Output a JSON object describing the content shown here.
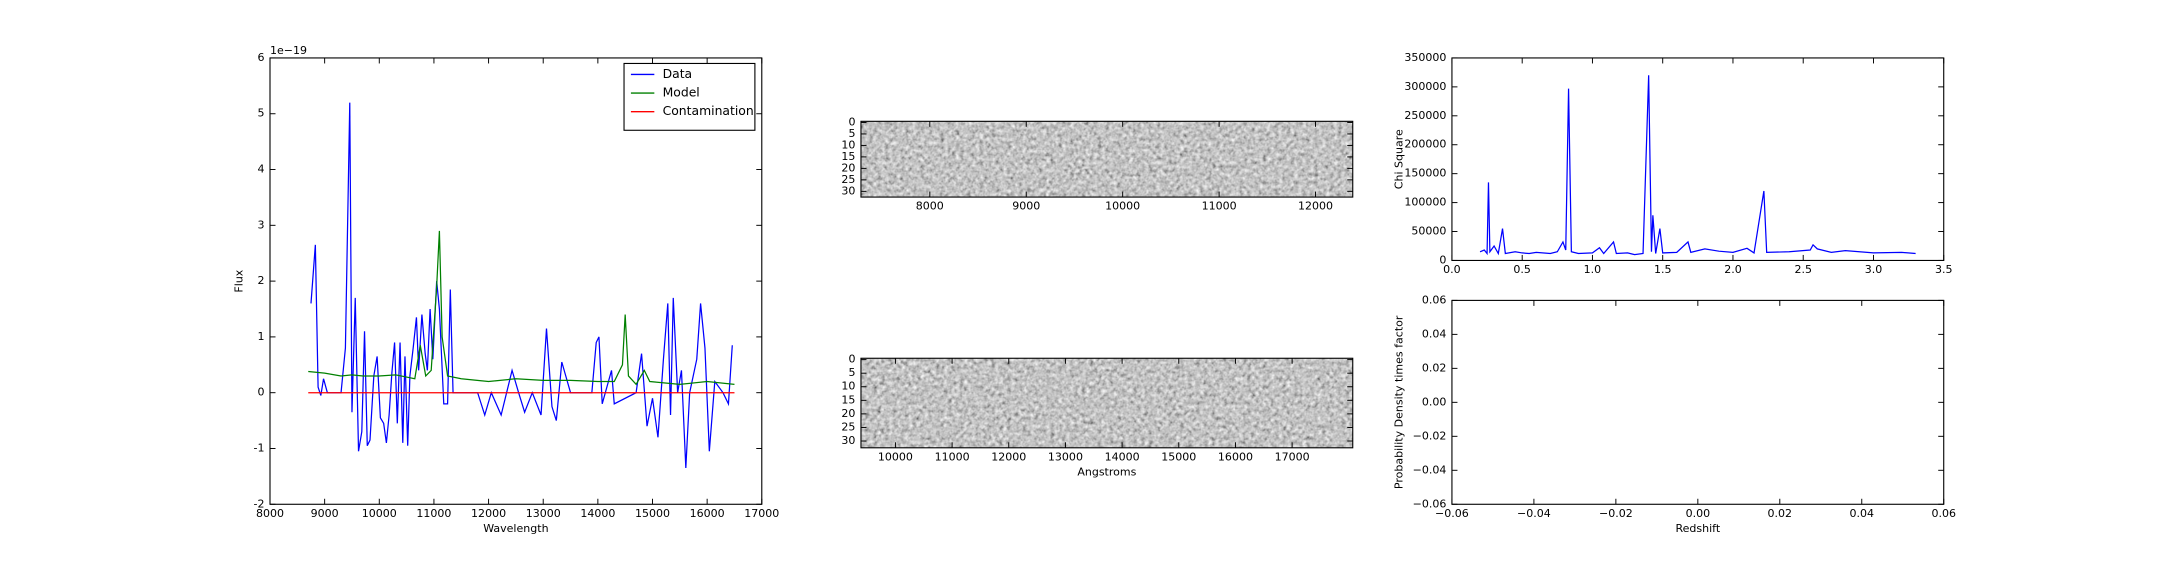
{
  "chart_data": [
    {
      "type": "line",
      "xlabel": "Wavelength",
      "ylabel": "Flux",
      "y_offset_label": "1e−19",
      "xlim": [
        8000,
        17000
      ],
      "ylim": [
        -2,
        6
      ],
      "xticks": [
        8000,
        9000,
        10000,
        11000,
        12000,
        13000,
        14000,
        15000,
        16000,
        17000
      ],
      "yticks": [
        -2,
        -1,
        0,
        1,
        2,
        3,
        4,
        5,
        6
      ],
      "legend": "upper right",
      "series": [
        {
          "name": "Data",
          "color": "#0000ff",
          "x": [
            8750,
            8830,
            8880,
            8930,
            8980,
            9050,
            9300,
            9380,
            9460,
            9500,
            9560,
            9620,
            9680,
            9730,
            9780,
            9830,
            9900,
            9960,
            10020,
            10080,
            10130,
            10180,
            10230,
            10280,
            10330,
            10380,
            10430,
            10470,
            10520,
            10560,
            10620,
            10680,
            10720,
            10780,
            10840,
            10880,
            10930,
            10980,
            11050,
            11100,
            11180,
            11250,
            11300,
            11350,
            11400,
            11800,
            11930,
            12050,
            12230,
            12330,
            12430,
            12550,
            12660,
            12800,
            12960,
            13060,
            13160,
            13240,
            13340,
            13500,
            13890,
            13970,
            14020,
            14080,
            14250,
            14300,
            14700,
            14800,
            14900,
            15000,
            15100,
            15200,
            15280,
            15330,
            15380,
            15460,
            15530,
            15610,
            15680,
            15810,
            15880,
            15960,
            16040,
            16140,
            16290,
            16390,
            16460
          ],
          "values": [
            1.6,
            2.65,
            0.1,
            -0.05,
            0.25,
            0.0,
            0.0,
            0.8,
            5.2,
            -0.35,
            1.7,
            -1.05,
            -0.7,
            1.1,
            -0.95,
            -0.85,
            0.3,
            0.65,
            -0.45,
            -0.55,
            -0.9,
            -0.4,
            0.35,
            0.9,
            -0.55,
            0.9,
            -0.9,
            0.65,
            -0.95,
            0.3,
            0.8,
            1.35,
            0.4,
            1.4,
            0.7,
            0.4,
            1.5,
            0.6,
            2.0,
            1.5,
            -0.2,
            -0.2,
            1.85,
            0.0,
            0.0,
            0.0,
            -0.4,
            0.0,
            -0.4,
            0.0,
            0.4,
            0.0,
            -0.35,
            0.0,
            -0.4,
            1.15,
            -0.25,
            -0.5,
            0.55,
            0.0,
            0.0,
            0.9,
            1.0,
            -0.2,
            0.4,
            -0.2,
            0.0,
            0.7,
            -0.6,
            -0.1,
            -0.8,
            0.6,
            1.6,
            -0.4,
            1.7,
            0.0,
            0.4,
            -1.35,
            0.0,
            0.6,
            1.6,
            0.8,
            -1.05,
            0.2,
            0.0,
            -0.2,
            0.85
          ]
        },
        {
          "name": "Model",
          "color": "#008000",
          "x": [
            8700,
            9000,
            9300,
            9500,
            9700,
            10000,
            10300,
            10500,
            10650,
            10750,
            10850,
            10950,
            11050,
            11100,
            11150,
            11250,
            11500,
            12000,
            12500,
            13000,
            13500,
            14000,
            14300,
            14450,
            14500,
            14560,
            14700,
            14850,
            14950,
            15500,
            16000,
            16500
          ],
          "values": [
            0.38,
            0.35,
            0.3,
            0.32,
            0.3,
            0.3,
            0.32,
            0.28,
            0.25,
            0.85,
            0.3,
            0.4,
            1.9,
            2.9,
            1.0,
            0.3,
            0.25,
            0.2,
            0.25,
            0.22,
            0.22,
            0.2,
            0.2,
            0.5,
            1.4,
            0.3,
            0.15,
            0.4,
            0.2,
            0.15,
            0.2,
            0.15
          ]
        },
        {
          "name": "Contamination",
          "color": "#ff0000",
          "x": [
            8700,
            16500
          ],
          "values": [
            0,
            0
          ]
        }
      ]
    },
    {
      "type": "image",
      "xlim": [
        7286,
        12386
      ],
      "ylim": [
        32.5,
        -0.5
      ],
      "xticks": [
        8000,
        9000,
        10000,
        11000,
        12000
      ],
      "yticks": [
        0,
        5,
        10,
        15,
        20,
        25,
        30
      ]
    },
    {
      "type": "image",
      "xlabel": "Angstroms",
      "xlim": [
        9392,
        18070
      ],
      "ylim": [
        32.5,
        -0.5
      ],
      "xticks": [
        10000,
        11000,
        12000,
        13000,
        14000,
        15000,
        16000,
        17000
      ],
      "yticks": [
        0,
        5,
        10,
        15,
        20,
        25,
        30
      ]
    },
    {
      "type": "line",
      "ylabel": "Chi Square",
      "xlim": [
        0,
        3.5
      ],
      "ylim": [
        0,
        350000
      ],
      "xticks": [
        {
          "value": 0,
          "label": "0.0"
        },
        0.5,
        {
          "value": 1,
          "label": "1.0"
        },
        1.5,
        {
          "value": 2,
          "label": "2.0"
        },
        2.5,
        {
          "value": 3,
          "label": "3.0"
        },
        3.5
      ],
      "yticks": [
        0,
        50000,
        100000,
        150000,
        200000,
        250000,
        300000,
        350000
      ],
      "series": [
        {
          "color": "#0000ff",
          "x": [
            0.2,
            0.23,
            0.25,
            0.26,
            0.27,
            0.3,
            0.33,
            0.36,
            0.38,
            0.45,
            0.5,
            0.55,
            0.6,
            0.7,
            0.75,
            0.79,
            0.81,
            0.83,
            0.85,
            0.9,
            1.0,
            1.05,
            1.08,
            1.15,
            1.17,
            1.25,
            1.3,
            1.36,
            1.4,
            1.42,
            1.43,
            1.45,
            1.48,
            1.5,
            1.6,
            1.68,
            1.7,
            1.8,
            1.9,
            2.0,
            2.1,
            2.15,
            2.22,
            2.24,
            2.4,
            2.55,
            2.57,
            2.6,
            2.7,
            2.8,
            3.0,
            3.2,
            3.3
          ],
          "values": [
            15000,
            18000,
            12000,
            135000,
            15000,
            25000,
            12000,
            55000,
            12000,
            15000,
            13000,
            12000,
            14000,
            12000,
            15000,
            32000,
            18000,
            297000,
            15000,
            12000,
            13000,
            22000,
            12000,
            32000,
            12000,
            13000,
            10000,
            12000,
            320000,
            15000,
            78000,
            12000,
            55000,
            13000,
            14000,
            32000,
            14000,
            20000,
            16000,
            14000,
            21000,
            13000,
            120000,
            14000,
            15000,
            18000,
            27000,
            20000,
            14000,
            17000,
            13000,
            14000,
            12000
          ]
        }
      ]
    },
    {
      "type": "line",
      "xlabel": "Redshift",
      "ylabel": "Probability Density times factor",
      "xlim": [
        -0.06,
        0.06
      ],
      "ylim": [
        -0.06,
        0.06
      ],
      "xticks": [
        {
          "value": -0.06,
          "label": "−0.06"
        },
        {
          "value": -0.04,
          "label": "−0.04"
        },
        {
          "value": -0.02,
          "label": "−0.02"
        },
        {
          "value": 0,
          "label": "0.00"
        },
        {
          "value": 0.02,
          "label": "0.02"
        },
        {
          "value": 0.04,
          "label": "0.04"
        },
        {
          "value": 0.06,
          "label": "0.06"
        }
      ],
      "yticks": [
        {
          "value": -0.06,
          "label": "−0.06"
        },
        {
          "value": -0.04,
          "label": "−0.04"
        },
        {
          "value": -0.02,
          "label": "−0.02"
        },
        {
          "value": 0,
          "label": "0.00"
        },
        {
          "value": 0.02,
          "label": "0.02"
        },
        {
          "value": 0.04,
          "label": "0.04"
        },
        {
          "value": 0.06,
          "label": "0.06"
        }
      ],
      "series": []
    }
  ]
}
